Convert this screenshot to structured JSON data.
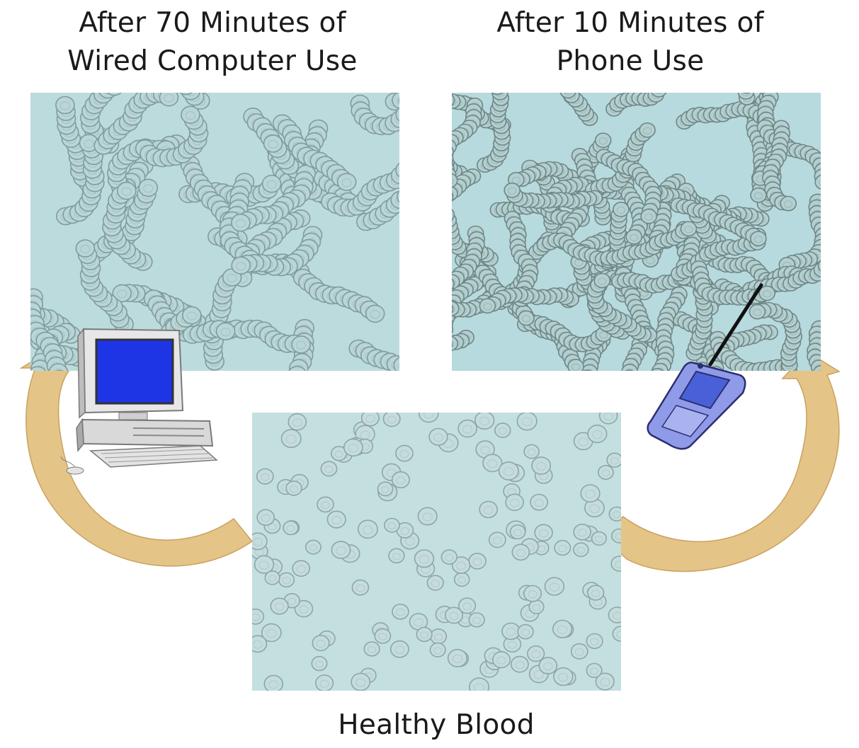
{
  "captions": {
    "computer": [
      "After 70 Minutes of",
      "Wired Computer Use"
    ],
    "phone": [
      "After 10 Minutes of",
      "Phone Use"
    ],
    "healthy": "Healthy Blood"
  },
  "colors": {
    "background": "#ffffff",
    "arrow": "#e5c488",
    "arrow_edge": "#c9a25e",
    "micrograph_background": "#bcdbdd",
    "cell_outline": "#7f9c9e",
    "screen": "#1e35e6"
  },
  "icons": {
    "computer": "desktop-computer-icon",
    "phone": "mobile-phone-icon",
    "arrows": "curved-arrow-icon"
  }
}
